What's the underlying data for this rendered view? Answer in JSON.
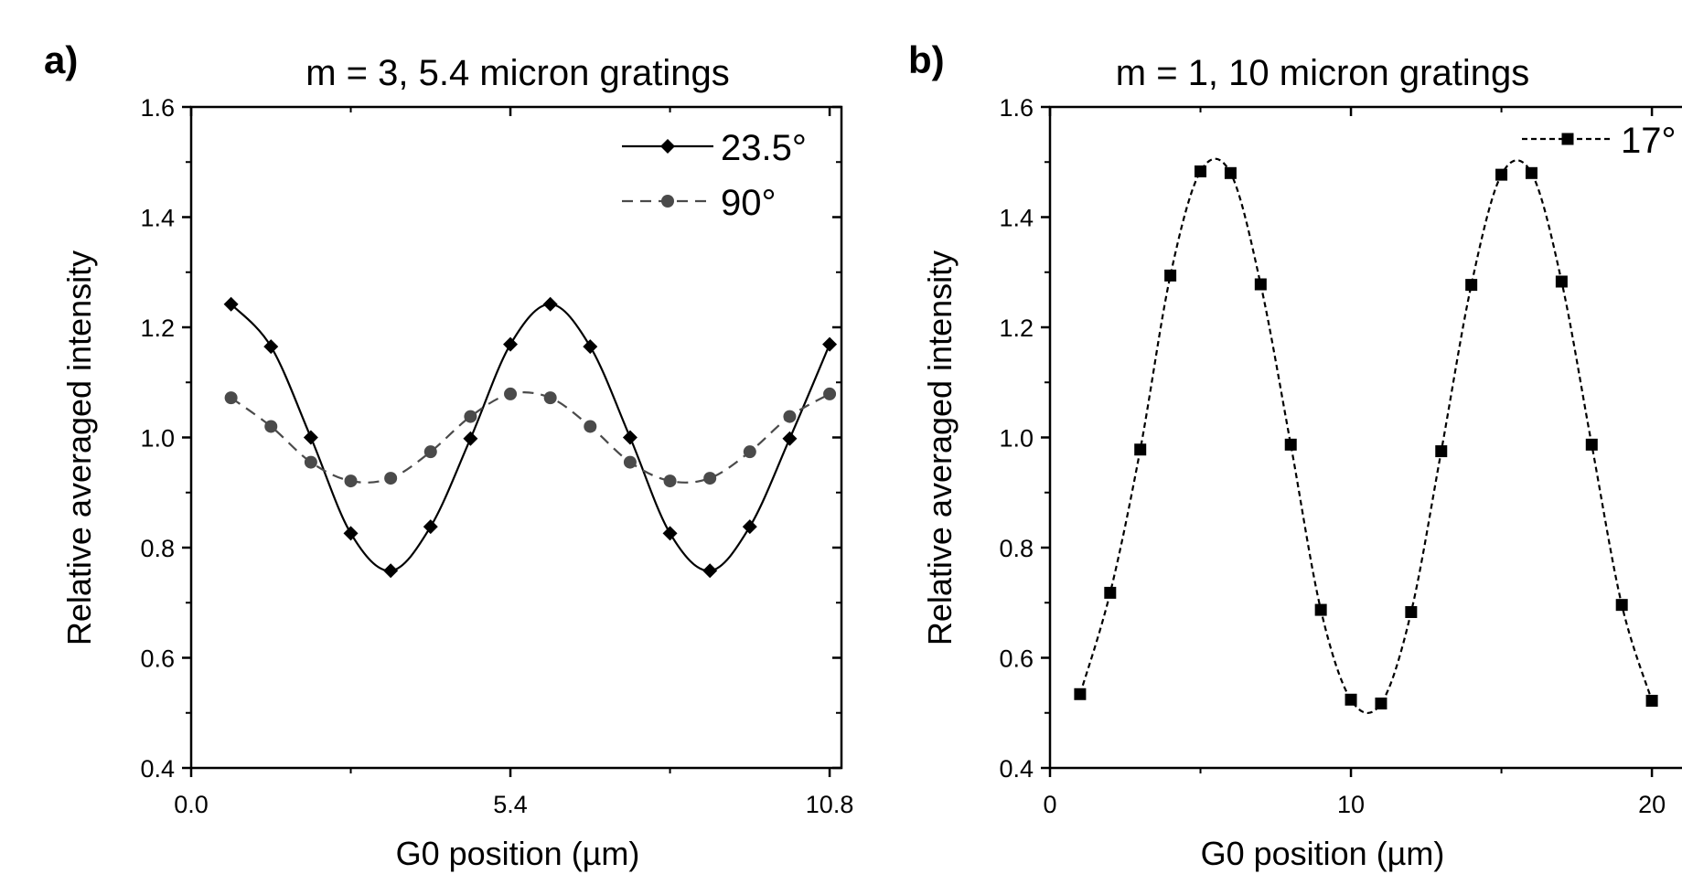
{
  "chart_data": [
    {
      "type": "line",
      "panel_label": "a)",
      "title": "m = 3, 5.4 micron gratings",
      "xlabel": "G0 position (µm)",
      "ylabel": "Relative averaged intensity",
      "xlim": [
        0,
        11
      ],
      "ylim": [
        0.4,
        1.6
      ],
      "xticks": [
        0.0,
        5.4,
        10.8
      ],
      "xtick_labels": [
        "0.0",
        "5.4",
        "10.8"
      ],
      "yticks": [
        0.4,
        0.6,
        0.8,
        1.0,
        1.2,
        1.4,
        1.6
      ],
      "ytick_labels": [
        "0.4",
        "0.6",
        "0.8",
        "1.0",
        "1.2",
        "1.4",
        "1.6"
      ],
      "legend_position": "top-right",
      "series": [
        {
          "name": "23.5°",
          "marker": "diamond",
          "line": "solid",
          "color": "#000000",
          "x": [
            0.675,
            1.35,
            2.025,
            2.7,
            3.375,
            4.05,
            4.725,
            5.4,
            6.075,
            6.75,
            7.425,
            8.1,
            8.775,
            9.45,
            10.125,
            10.8
          ],
          "y": [
            1.242,
            1.165,
            1.0,
            0.826,
            0.758,
            0.838,
            0.998,
            1.169,
            1.242,
            1.165,
            1.0,
            0.826,
            0.758,
            0.838,
            0.998,
            1.169
          ]
        },
        {
          "name": "90°",
          "marker": "circle",
          "line": "dashed",
          "color": "#4a4a4a",
          "x": [
            0.675,
            1.35,
            2.025,
            2.7,
            3.375,
            4.05,
            4.725,
            5.4,
            6.075,
            6.75,
            7.425,
            8.1,
            8.775,
            9.45,
            10.125,
            10.8
          ],
          "y": [
            1.072,
            1.02,
            0.955,
            0.921,
            0.926,
            0.974,
            1.038,
            1.079,
            1.072,
            1.02,
            0.955,
            0.921,
            0.926,
            0.974,
            1.038,
            1.079
          ]
        }
      ]
    },
    {
      "type": "line",
      "panel_label": "b)",
      "title": "m = 1, 10 micron gratings",
      "xlabel": "G0 position (µm)",
      "ylabel": "Relative averaged intensity",
      "xlim": [
        0,
        21
      ],
      "ylim": [
        0.4,
        1.6
      ],
      "xticks": [
        0,
        10,
        20
      ],
      "xtick_labels": [
        "0",
        "10",
        "20"
      ],
      "yticks": [
        0.4,
        0.6,
        0.8,
        1.0,
        1.2,
        1.4,
        1.6
      ],
      "ytick_labels": [
        "0.4",
        "0.6",
        "0.8",
        "1.0",
        "1.2",
        "1.4",
        "1.6"
      ],
      "legend_position": "top-right",
      "series": [
        {
          "name": "17°",
          "marker": "square",
          "line": "dotted",
          "color": "#000000",
          "x": [
            1,
            2,
            3,
            4,
            5,
            6,
            7,
            8,
            9,
            10,
            11,
            12,
            13,
            14,
            15,
            16,
            17,
            18,
            19,
            20
          ],
          "y": [
            0.534,
            0.718,
            0.978,
            1.294,
            1.483,
            1.48,
            1.278,
            0.987,
            0.687,
            0.524,
            0.517,
            0.683,
            0.975,
            1.277,
            1.477,
            1.48,
            1.283,
            0.987,
            0.696,
            0.522
          ]
        }
      ]
    }
  ]
}
